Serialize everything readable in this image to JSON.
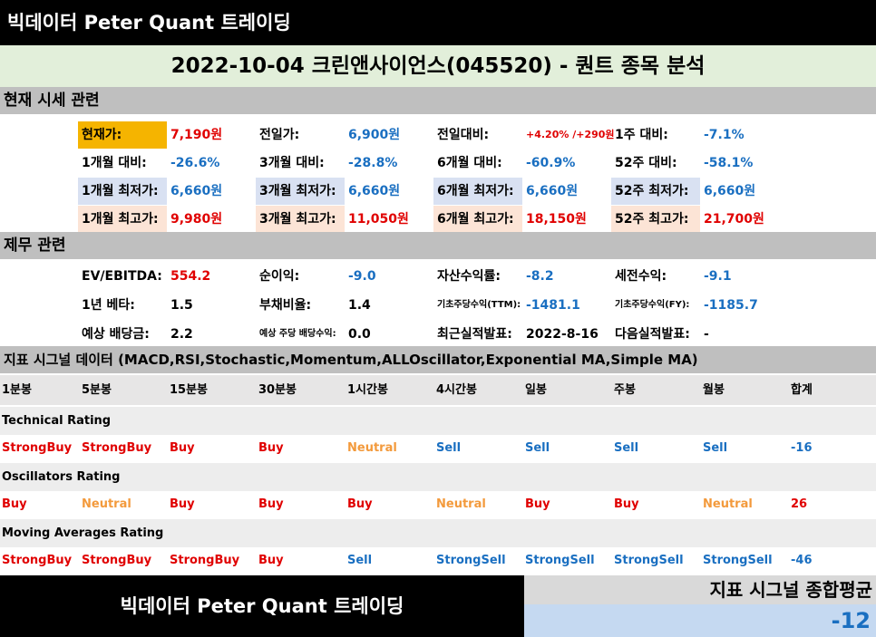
{
  "header": {
    "brand": "빅데이터 Peter Quant 트레이딩"
  },
  "title": "2022-10-04 크린앤사이언스(045520) - 퀀트 종목 분석",
  "price_section": {
    "heading": "현재 시세 관련",
    "row1": [
      {
        "label": "현재가:",
        "value": "7,190원"
      },
      {
        "label": "전일가:",
        "value": "6,900원"
      },
      {
        "label": "전일대비:",
        "value": "+4.20% /+290원"
      },
      {
        "label": "1주 대비:",
        "value": "-7.1%"
      }
    ],
    "row2": [
      {
        "label": "1개월 대비:",
        "value": "-26.6%"
      },
      {
        "label": "3개월 대비:",
        "value": "-28.8%"
      },
      {
        "label": "6개월 대비:",
        "value": "-60.9%"
      },
      {
        "label": "52주 대비:",
        "value": "-58.1%"
      }
    ],
    "row3": [
      {
        "label": "1개월 최저가:",
        "value": "6,660원"
      },
      {
        "label": "3개월 최저가:",
        "value": "6,660원"
      },
      {
        "label": "6개월 최저가:",
        "value": "6,660원"
      },
      {
        "label": "52주 최저가:",
        "value": "6,660원"
      }
    ],
    "row4": [
      {
        "label": "1개월 최고가:",
        "value": "9,980원"
      },
      {
        "label": "3개월 최고가:",
        "value": "11,050원"
      },
      {
        "label": "6개월 최고가:",
        "value": "18,150원"
      },
      {
        "label": "52주 최고가:",
        "value": "21,700원"
      }
    ]
  },
  "finance_section": {
    "heading": "제무 관련",
    "row1": [
      {
        "label": "EV/EBITDA:",
        "value": "554.2"
      },
      {
        "label": "순이익:",
        "value": "-9.0"
      },
      {
        "label": "자산수익률:",
        "value": "-8.2"
      },
      {
        "label": "세전수익:",
        "value": "-9.1"
      }
    ],
    "row2": [
      {
        "label": "1년 베타:",
        "value": "1.5"
      },
      {
        "label": "부채비율:",
        "value": "1.4"
      },
      {
        "label": "기초주당수익(TTM):",
        "value": "-1481.1"
      },
      {
        "label": "기초주당수익(FY):",
        "value": "-1185.7"
      }
    ],
    "row3": [
      {
        "label": "예상 배당금:",
        "value": "2.2"
      },
      {
        "label": "예상 주당 배당수익:",
        "value": "0.0"
      },
      {
        "label": "최근실적발표:",
        "value": "2022-8-16"
      },
      {
        "label": "다음실적발표:",
        "value": "-"
      }
    ]
  },
  "signal_section": {
    "heading": "지표 시그널 데이터 (MACD,RSI,Stochastic,Momentum,ALLOscillator,Exponential MA,Simple MA)",
    "columns": [
      "1분봉",
      "5분봉",
      "15분봉",
      "30분봉",
      "1시간봉",
      "4시간봉",
      "일봉",
      "주봉",
      "월봉",
      "합계"
    ],
    "ratings": [
      {
        "name": "Technical Rating",
        "values": [
          "StrongBuy",
          "StrongBuy",
          "Buy",
          "Buy",
          "Neutral",
          "Sell",
          "Sell",
          "Sell",
          "Sell",
          "-16"
        ]
      },
      {
        "name": "Oscillators Rating",
        "values": [
          "Buy",
          "Neutral",
          "Buy",
          "Buy",
          "Buy",
          "Neutral",
          "Buy",
          "Buy",
          "Neutral",
          "26"
        ]
      },
      {
        "name": "Moving Averages Rating",
        "values": [
          "StrongBuy",
          "StrongBuy",
          "StrongBuy",
          "Buy",
          "Sell",
          "StrongSell",
          "StrongSell",
          "StrongSell",
          "StrongSell",
          "-46"
        ]
      }
    ]
  },
  "footer": {
    "brand": "빅데이터 Peter Quant 트레이딩",
    "avg_label": "지표 시그널 종합평균",
    "avg_value": "-12"
  },
  "colors": {
    "buy": "#e00000",
    "sell": "#1a6fc1",
    "neutral": "#f39a3c",
    "highlight_current": "#f5b400",
    "low_bg": "#d9e1f2",
    "high_bg": "#fce4d6"
  }
}
